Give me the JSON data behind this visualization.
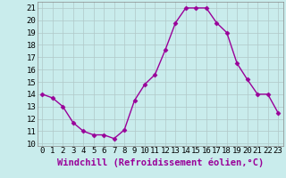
{
  "hours": [
    0,
    1,
    2,
    3,
    4,
    5,
    6,
    7,
    8,
    9,
    10,
    11,
    12,
    13,
    14,
    15,
    16,
    17,
    18,
    19,
    20,
    21,
    22,
    23
  ],
  "values": [
    14.0,
    13.7,
    13.0,
    11.7,
    11.0,
    10.7,
    10.7,
    10.4,
    11.1,
    13.5,
    14.8,
    15.6,
    17.6,
    19.8,
    21.0,
    21.0,
    21.0,
    19.8,
    19.0,
    16.5,
    15.2,
    14.0,
    14.0,
    12.5
  ],
  "line_color": "#990099",
  "marker": "D",
  "marker_size": 2.5,
  "bg_color": "#c9ecec",
  "grid_color": "#b0c8c8",
  "xlabel": "Windchill (Refroidissement éolien,°C)",
  "xlabel_color": "#990099",
  "ylim": [
    9.8,
    21.5
  ],
  "yticks": [
    10,
    11,
    12,
    13,
    14,
    15,
    16,
    17,
    18,
    19,
    20,
    21
  ],
  "xticks": [
    0,
    1,
    2,
    3,
    4,
    5,
    6,
    7,
    8,
    9,
    10,
    11,
    12,
    13,
    14,
    15,
    16,
    17,
    18,
    19,
    20,
    21,
    22,
    23
  ],
  "tick_fontsize": 6.5,
  "xlabel_fontsize": 7.5,
  "linewidth": 1.0
}
